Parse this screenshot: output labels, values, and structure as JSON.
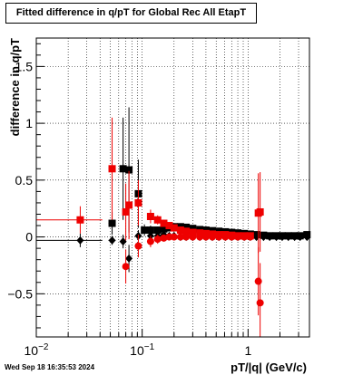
{
  "canvas": {
    "title": "Fitted difference in q/pT for Global Rec All EtapT",
    "timestamp": "Wed Sep 18 16:35:53 2024"
  },
  "colors": {
    "black_series": "#000000",
    "red_series": "#ee0000",
    "grid": "#000000"
  },
  "chart_data": {
    "type": "scatter",
    "title": "Fitted difference in q/pT for Global Rec All EtapT",
    "xlabel": "pT/|q| (GeV/c)",
    "ylabel": "difference in q/pT",
    "xscale": "log",
    "xlim": [
      0.01,
      3.8
    ],
    "ylim": [
      -0.88,
      1.75
    ],
    "grid": true,
    "x_ticks": [
      {
        "value": 0.01,
        "label": "10^-2"
      },
      {
        "value": 0.1,
        "label": "10^-1"
      },
      {
        "value": 1,
        "label": "1"
      }
    ],
    "y_ticks": [
      {
        "value": -0.5,
        "label": "-0.5"
      },
      {
        "value": 0,
        "label": "0"
      },
      {
        "value": 0.5,
        "label": "0.5"
      },
      {
        "value": 1,
        "label": "1"
      },
      {
        "value": 1.5,
        "label": "1.5"
      }
    ],
    "series": [
      {
        "color": "#000000",
        "role": "black-squares",
        "marker": "square",
        "points": [
          {
            "x": 0.052,
            "y": 0.12,
            "xerr": 0.004,
            "yerr": 0.1
          },
          {
            "x": 0.066,
            "y": 0.6,
            "xerr": 0.003,
            "yerr": 0.45
          },
          {
            "x": 0.075,
            "y": 0.59,
            "xerr": 0.003,
            "yerr": 0.55
          },
          {
            "x": 0.092,
            "y": 0.38,
            "xerr": 0.004,
            "yerr": 0.3
          },
          {
            "x": 0.105,
            "y": 0.06,
            "xerr": 0.004,
            "yerr": 0.05
          },
          {
            "x": 0.12,
            "y": 0.06,
            "xerr": 0.004,
            "yerr": 0.04
          },
          {
            "x": 0.14,
            "y": 0.06,
            "xerr": 0.005,
            "yerr": 0.03
          },
          {
            "x": 0.16,
            "y": 0.07,
            "xerr": 0.005,
            "yerr": 0.03
          },
          {
            "x": 0.18,
            "y": 0.08,
            "xerr": 0.006,
            "yerr": 0.03
          },
          {
            "x": 0.2,
            "y": 0.09,
            "xerr": 0.007,
            "yerr": 0.02
          },
          {
            "x": 0.23,
            "y": 0.09,
            "xerr": 0.008,
            "yerr": 0.02
          },
          {
            "x": 0.26,
            "y": 0.085,
            "xerr": 0.009,
            "yerr": 0.02
          },
          {
            "x": 0.3,
            "y": 0.075,
            "xerr": 0.01,
            "yerr": 0.02
          },
          {
            "x": 0.35,
            "y": 0.065,
            "xerr": 0.012,
            "yerr": 0.02
          },
          {
            "x": 0.4,
            "y": 0.06,
            "xerr": 0.014,
            "yerr": 0.02
          },
          {
            "x": 0.46,
            "y": 0.055,
            "xerr": 0.016,
            "yerr": 0.02
          },
          {
            "x": 0.53,
            "y": 0.05,
            "xerr": 0.018,
            "yerr": 0.02
          },
          {
            "x": 0.61,
            "y": 0.045,
            "xerr": 0.02,
            "yerr": 0.02
          },
          {
            "x": 0.7,
            "y": 0.04,
            "xerr": 0.024,
            "yerr": 0.02
          },
          {
            "x": 0.8,
            "y": 0.035,
            "xerr": 0.027,
            "yerr": 0.02
          },
          {
            "x": 0.92,
            "y": 0.03,
            "xerr": 0.03,
            "yerr": 0.02
          },
          {
            "x": 1.05,
            "y": 0.025,
            "xerr": 0.035,
            "yerr": 0.02
          },
          {
            "x": 1.2,
            "y": 0.02,
            "xerr": 0.04,
            "yerr": 0.02
          },
          {
            "x": 1.4,
            "y": 0.015,
            "xerr": 0.05,
            "yerr": 0.02
          },
          {
            "x": 1.6,
            "y": 0.01,
            "xerr": 0.05,
            "yerr": 0.02
          },
          {
            "x": 1.85,
            "y": 0.01,
            "xerr": 0.06,
            "yerr": 0.02
          },
          {
            "x": 2.1,
            "y": 0.01,
            "xerr": 0.07,
            "yerr": 0.02
          },
          {
            "x": 2.4,
            "y": 0.01,
            "xerr": 0.08,
            "yerr": 0.02
          },
          {
            "x": 2.75,
            "y": 0.01,
            "xerr": 0.09,
            "yerr": 0.02
          },
          {
            "x": 3.1,
            "y": 0.01,
            "xerr": 0.1,
            "yerr": 0.02
          },
          {
            "x": 3.6,
            "y": 0.02,
            "xerr": 0.12,
            "yerr": 0.02
          }
        ]
      },
      {
        "color": "#000000",
        "role": "black-diamonds",
        "marker": "diamond",
        "points": [
          {
            "x": 0.026,
            "y": -0.03,
            "xerr": 0.016,
            "yerr": 0.06
          },
          {
            "x": 0.052,
            "y": -0.03,
            "xerr": 0.004,
            "yerr": 0.04
          },
          {
            "x": 0.066,
            "y": -0.04,
            "xerr": 0.003,
            "yerr": 0.06
          },
          {
            "x": 0.075,
            "y": -0.19,
            "xerr": 0.003,
            "yerr": 0.12
          },
          {
            "x": 0.092,
            "y": 0.01,
            "xerr": 0.004,
            "yerr": 0.05
          },
          {
            "x": 0.12,
            "y": 0.01,
            "xerr": 0.004,
            "yerr": 0.03
          },
          {
            "x": 0.14,
            "y": 0.01,
            "xerr": 0.005,
            "yerr": 0.02
          },
          {
            "x": 0.16,
            "y": 0.02,
            "xerr": 0.005,
            "yerr": 0.02
          },
          {
            "x": 0.18,
            "y": 0.01,
            "xerr": 0.006,
            "yerr": 0.02
          },
          {
            "x": 0.2,
            "y": 0.01,
            "xerr": 0.007,
            "yerr": 0.02
          },
          {
            "x": 0.23,
            "y": 0.0,
            "xerr": 0.008,
            "yerr": 0.02
          },
          {
            "x": 0.26,
            "y": 0.0,
            "xerr": 0.009,
            "yerr": 0.02
          },
          {
            "x": 0.3,
            "y": 0.0,
            "xerr": 0.01,
            "yerr": 0.02
          },
          {
            "x": 0.35,
            "y": 0.0,
            "xerr": 0.012,
            "yerr": 0.02
          },
          {
            "x": 0.4,
            "y": 0.0,
            "xerr": 0.014,
            "yerr": 0.02
          },
          {
            "x": 0.46,
            "y": 0.0,
            "xerr": 0.016,
            "yerr": 0.02
          },
          {
            "x": 0.53,
            "y": 0.0,
            "xerr": 0.018,
            "yerr": 0.02
          },
          {
            "x": 0.61,
            "y": 0.0,
            "xerr": 0.02,
            "yerr": 0.02
          },
          {
            "x": 0.7,
            "y": 0.0,
            "xerr": 0.024,
            "yerr": 0.02
          },
          {
            "x": 0.8,
            "y": 0.0,
            "xerr": 0.027,
            "yerr": 0.02
          },
          {
            "x": 0.92,
            "y": 0.0,
            "xerr": 0.03,
            "yerr": 0.02
          },
          {
            "x": 1.05,
            "y": 0.0,
            "xerr": 0.035,
            "yerr": 0.02
          },
          {
            "x": 1.2,
            "y": 0.0,
            "xerr": 0.04,
            "yerr": 0.02
          },
          {
            "x": 1.4,
            "y": 0.0,
            "xerr": 0.05,
            "yerr": 0.02
          },
          {
            "x": 1.6,
            "y": 0.0,
            "xerr": 0.05,
            "yerr": 0.02
          },
          {
            "x": 1.85,
            "y": 0.0,
            "xerr": 0.06,
            "yerr": 0.02
          },
          {
            "x": 2.1,
            "y": 0.0,
            "xerr": 0.07,
            "yerr": 0.02
          },
          {
            "x": 2.4,
            "y": 0.0,
            "xerr": 0.08,
            "yerr": 0.02
          },
          {
            "x": 2.75,
            "y": 0.0,
            "xerr": 0.09,
            "yerr": 0.02
          },
          {
            "x": 3.1,
            "y": 0.0,
            "xerr": 0.1,
            "yerr": 0.02
          },
          {
            "x": 3.6,
            "y": 0.0,
            "xerr": 0.12,
            "yerr": 0.02
          }
        ]
      },
      {
        "color": "#ee0000",
        "role": "red-squares",
        "marker": "square",
        "points": [
          {
            "x": 0.026,
            "y": 0.15,
            "xerr": 0.016,
            "yerr": 0.12
          },
          {
            "x": 0.052,
            "y": 0.6,
            "xerr": 0.004,
            "yerr": 0.45
          },
          {
            "x": 0.07,
            "y": 0.22,
            "xerr": 0.003,
            "yerr": 0.25
          },
          {
            "x": 0.075,
            "y": 0.28,
            "xerr": 0.003,
            "yerr": 0.3
          },
          {
            "x": 0.092,
            "y": 0.3,
            "xerr": 0.004,
            "yerr": 0.2
          },
          {
            "x": 0.12,
            "y": 0.18,
            "xerr": 0.004,
            "yerr": 0.06
          },
          {
            "x": 0.14,
            "y": 0.15,
            "xerr": 0.005,
            "yerr": 0.04
          },
          {
            "x": 0.16,
            "y": 0.12,
            "xerr": 0.005,
            "yerr": 0.03
          },
          {
            "x": 0.18,
            "y": 0.1,
            "xerr": 0.006,
            "yerr": 0.03
          },
          {
            "x": 0.2,
            "y": 0.08,
            "xerr": 0.007,
            "yerr": 0.02
          },
          {
            "x": 0.23,
            "y": 0.06,
            "xerr": 0.008,
            "yerr": 0.02
          },
          {
            "x": 0.26,
            "y": 0.05,
            "xerr": 0.009,
            "yerr": 0.02
          },
          {
            "x": 0.3,
            "y": 0.04,
            "xerr": 0.01,
            "yerr": 0.02
          },
          {
            "x": 0.35,
            "y": 0.035,
            "xerr": 0.012,
            "yerr": 0.02
          },
          {
            "x": 0.4,
            "y": 0.03,
            "xerr": 0.014,
            "yerr": 0.02
          },
          {
            "x": 0.46,
            "y": 0.025,
            "xerr": 0.016,
            "yerr": 0.02
          },
          {
            "x": 0.53,
            "y": 0.02,
            "xerr": 0.018,
            "yerr": 0.02
          },
          {
            "x": 0.61,
            "y": 0.02,
            "xerr": 0.02,
            "yerr": 0.02
          },
          {
            "x": 0.7,
            "y": 0.015,
            "xerr": 0.024,
            "yerr": 0.02
          },
          {
            "x": 0.8,
            "y": 0.01,
            "xerr": 0.027,
            "yerr": 0.02
          },
          {
            "x": 0.92,
            "y": 0.01,
            "xerr": 0.03,
            "yerr": 0.02
          },
          {
            "x": 1.05,
            "y": 0.01,
            "xerr": 0.035,
            "yerr": 0.02
          },
          {
            "x": 1.25,
            "y": 0.21,
            "xerr": 0.05,
            "yerr": 0.35
          },
          {
            "x": 1.3,
            "y": 0.22,
            "xerr": 0.04,
            "yerr": 0.35
          }
        ]
      },
      {
        "color": "#ee0000",
        "role": "red-circles",
        "marker": "circle",
        "points": [
          {
            "x": 0.07,
            "y": -0.26,
            "xerr": 0.003,
            "yerr": 0.15
          },
          {
            "x": 0.092,
            "y": -0.08,
            "xerr": 0.004,
            "yerr": 0.1
          },
          {
            "x": 0.12,
            "y": -0.04,
            "xerr": 0.004,
            "yerr": 0.05
          },
          {
            "x": 0.14,
            "y": -0.02,
            "xerr": 0.005,
            "yerr": 0.04
          },
          {
            "x": 0.16,
            "y": -0.01,
            "xerr": 0.005,
            "yerr": 0.03
          },
          {
            "x": 0.18,
            "y": 0.0,
            "xerr": 0.006,
            "yerr": 0.03
          },
          {
            "x": 0.2,
            "y": 0.0,
            "xerr": 0.007,
            "yerr": 0.02
          },
          {
            "x": 0.23,
            "y": 0.0,
            "xerr": 0.008,
            "yerr": 0.02
          },
          {
            "x": 0.26,
            "y": 0.0,
            "xerr": 0.009,
            "yerr": 0.02
          },
          {
            "x": 0.3,
            "y": 0.0,
            "xerr": 0.01,
            "yerr": 0.02
          },
          {
            "x": 0.35,
            "y": 0.0,
            "xerr": 0.012,
            "yerr": 0.02
          },
          {
            "x": 0.4,
            "y": 0.0,
            "xerr": 0.014,
            "yerr": 0.02
          },
          {
            "x": 0.46,
            "y": 0.0,
            "xerr": 0.016,
            "yerr": 0.02
          },
          {
            "x": 0.53,
            "y": 0.0,
            "xerr": 0.018,
            "yerr": 0.02
          },
          {
            "x": 0.61,
            "y": 0.0,
            "xerr": 0.02,
            "yerr": 0.02
          },
          {
            "x": 0.7,
            "y": 0.0,
            "xerr": 0.024,
            "yerr": 0.02
          },
          {
            "x": 0.8,
            "y": 0.0,
            "xerr": 0.027,
            "yerr": 0.02
          },
          {
            "x": 0.92,
            "y": 0.0,
            "xerr": 0.03,
            "yerr": 0.02
          },
          {
            "x": 1.05,
            "y": 0.0,
            "xerr": 0.035,
            "yerr": 0.02
          },
          {
            "x": 1.25,
            "y": -0.39,
            "xerr": 0.05,
            "yerr": 0.3
          },
          {
            "x": 1.3,
            "y": -0.58,
            "xerr": 0.04,
            "yerr": 0.35
          }
        ]
      }
    ]
  }
}
